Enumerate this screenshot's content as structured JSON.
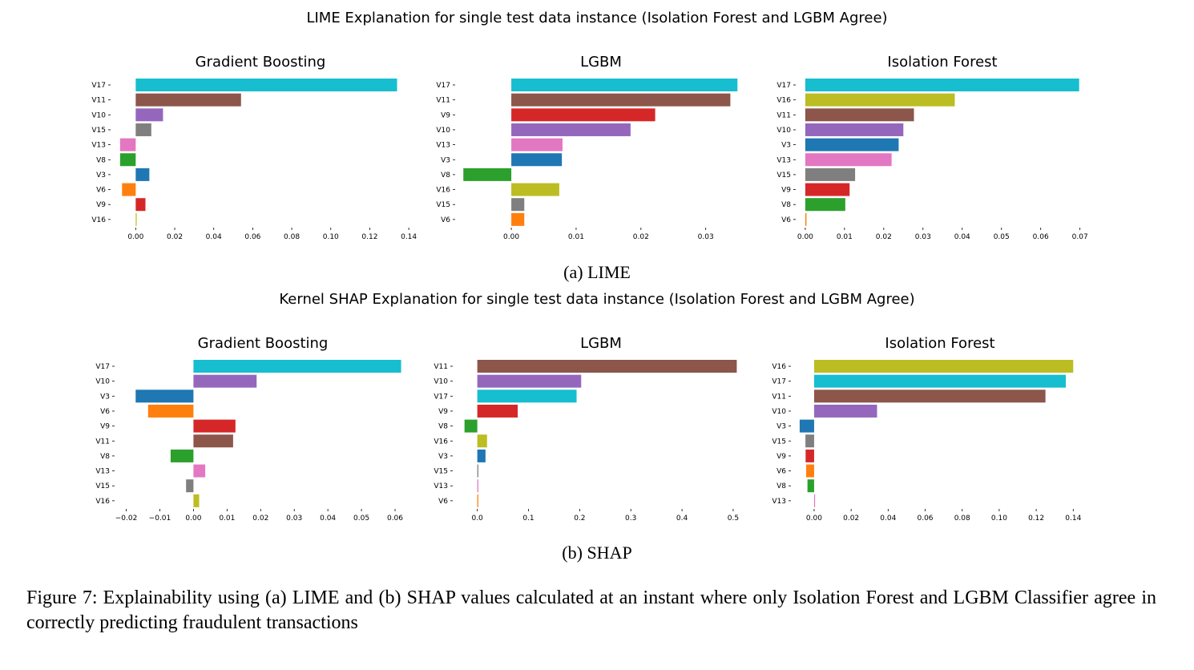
{
  "figure": {
    "lime_suptitle": "LIME Explanation for single test data instance (Isolation Forest and LGBM Agree)",
    "lime_subcaption": "(a) LIME",
    "shap_suptitle": "Kernel SHAP Explanation for single test data instance (Isolation Forest and LGBM Agree)",
    "shap_subcaption": "(b) SHAP",
    "caption": "Figure 7: Explainability using (a) LIME and (b) SHAP values calculated at an instant where only Isolation Forest and LGBM Classifier agree in correctly predicting fraudulent transactions"
  },
  "colors": {
    "V3": "#1f77b4",
    "V6": "#ff7f0e",
    "V8": "#2ca02c",
    "V9": "#d62728",
    "V10": "#9467bd",
    "V11": "#8c564b",
    "V13": "#e377c2",
    "V15": "#7f7f7f",
    "V16": "#bcbd22",
    "V17": "#17becf"
  },
  "chart_data": [
    {
      "type": "bar",
      "orientation": "horizontal",
      "group": "LIME",
      "title": "Gradient Boosting",
      "categories": [
        "V17",
        "V11",
        "V10",
        "V15",
        "V13",
        "V8",
        "V3",
        "V6",
        "V9",
        "V16"
      ],
      "values": [
        0.134,
        0.054,
        0.014,
        0.008,
        -0.008,
        -0.008,
        0.007,
        -0.007,
        0.005,
        0.0005
      ],
      "xlim": [
        -0.01,
        0.142
      ],
      "xticks": [
        0.0,
        0.02,
        0.04,
        0.06,
        0.08,
        0.1,
        0.12,
        0.14
      ],
      "xtick_labels": [
        "0.00",
        "0.02",
        "0.04",
        "0.06",
        "0.08",
        "0.10",
        "0.12",
        "0.14"
      ]
    },
    {
      "type": "bar",
      "orientation": "horizontal",
      "group": "LIME",
      "title": "LGBM",
      "categories": [
        "V17",
        "V11",
        "V9",
        "V10",
        "V13",
        "V3",
        "V8",
        "V16",
        "V15",
        "V6"
      ],
      "values": [
        0.0349,
        0.0338,
        0.0222,
        0.0184,
        0.0079,
        0.0078,
        -0.0074,
        0.0074,
        0.002,
        0.002
      ],
      "xlim": [
        -0.0078,
        0.0361
      ],
      "xticks": [
        0.0,
        0.01,
        0.02,
        0.03
      ],
      "xtick_labels": [
        "0.00",
        "0.01",
        "0.02",
        "0.03"
      ]
    },
    {
      "type": "bar",
      "orientation": "horizontal",
      "group": "LIME",
      "title": "Isolation Forest",
      "categories": [
        "V17",
        "V16",
        "V11",
        "V10",
        "V3",
        "V13",
        "V15",
        "V9",
        "V8",
        "V6"
      ],
      "values": [
        0.0698,
        0.0381,
        0.0277,
        0.025,
        0.0238,
        0.022,
        0.0127,
        0.0113,
        0.0102,
        0.0003
      ],
      "xlim": [
        -0.001,
        0.0715
      ],
      "xticks": [
        0.0,
        0.01,
        0.02,
        0.03,
        0.04,
        0.05,
        0.06,
        0.07
      ],
      "xtick_labels": [
        "0.00",
        "0.01",
        "0.02",
        "0.03",
        "0.04",
        "0.05",
        "0.06",
        "0.07"
      ]
    },
    {
      "type": "bar",
      "orientation": "horizontal",
      "group": "SHAP",
      "title": "Gradient Boosting",
      "categories": [
        "V17",
        "V10",
        "V3",
        "V6",
        "V9",
        "V11",
        "V8",
        "V13",
        "V15",
        "V16"
      ],
      "values": [
        0.0618,
        0.0188,
        -0.0172,
        -0.0135,
        0.0125,
        0.0118,
        -0.0068,
        0.0035,
        -0.0022,
        0.0017
      ],
      "xlim": [
        -0.0218,
        0.0631
      ],
      "xticks": [
        -0.02,
        -0.01,
        0.0,
        0.01,
        0.02,
        0.03,
        0.04,
        0.05,
        0.06
      ],
      "xtick_labels": [
        "−0.02",
        "−0.01",
        "0.00",
        "0.01",
        "0.02",
        "0.03",
        "0.04",
        "0.05",
        "0.06"
      ]
    },
    {
      "type": "bar",
      "orientation": "horizontal",
      "group": "SHAP",
      "title": "LGBM",
      "categories": [
        "V11",
        "V10",
        "V17",
        "V9",
        "V8",
        "V16",
        "V3",
        "V15",
        "V13",
        "V6"
      ],
      "values": [
        0.507,
        0.203,
        0.194,
        0.079,
        -0.025,
        0.019,
        0.016,
        0.002,
        0.002,
        0.002
      ],
      "xlim": [
        -0.037,
        0.522
      ],
      "xticks": [
        0.0,
        0.1,
        0.2,
        0.3,
        0.4,
        0.5
      ],
      "xtick_labels": [
        "0.0",
        "0.1",
        "0.2",
        "0.3",
        "0.4",
        "0.5"
      ]
    },
    {
      "type": "bar",
      "orientation": "horizontal",
      "group": "SHAP",
      "title": "Isolation Forest",
      "categories": [
        "V16",
        "V17",
        "V11",
        "V10",
        "V3",
        "V15",
        "V9",
        "V6",
        "V8",
        "V13"
      ],
      "values": [
        0.14,
        0.136,
        0.125,
        0.034,
        -0.0078,
        -0.0047,
        -0.0046,
        -0.0043,
        -0.0036,
        0.0005
      ],
      "xlim": [
        -0.0095,
        0.1455
      ],
      "xticks": [
        0.0,
        0.02,
        0.04,
        0.06,
        0.08,
        0.1,
        0.12,
        0.14
      ],
      "xtick_labels": [
        "0.00",
        "0.02",
        "0.04",
        "0.06",
        "0.08",
        "0.10",
        "0.12",
        "0.14"
      ]
    }
  ]
}
